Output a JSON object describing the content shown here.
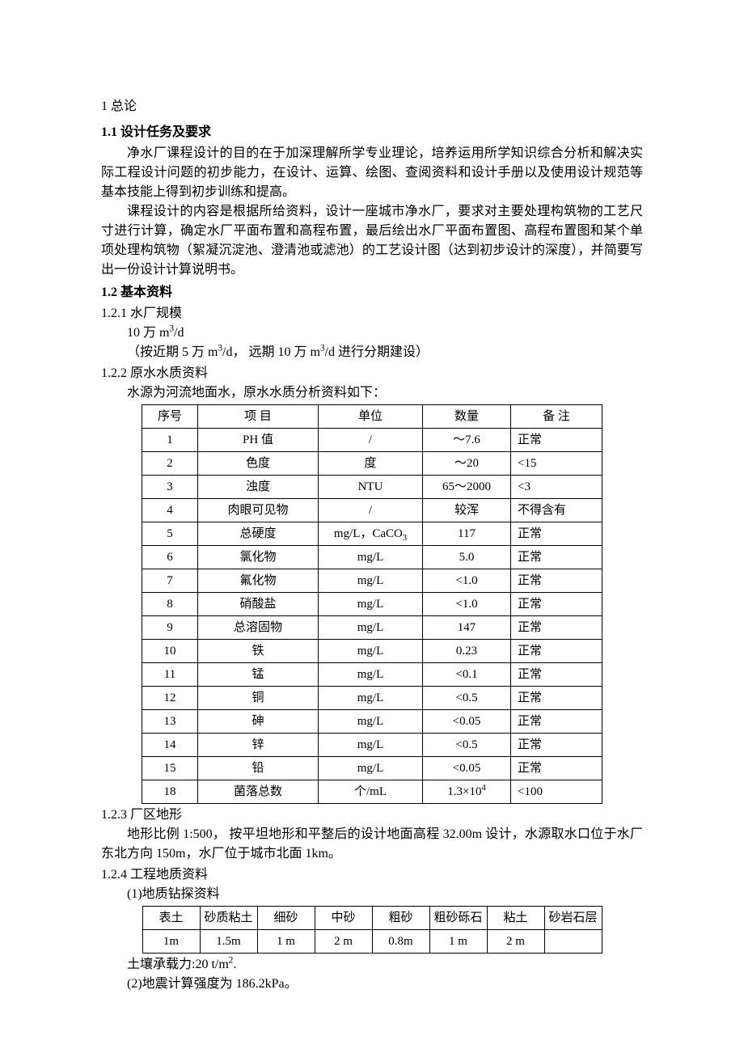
{
  "section1": {
    "num_title": "1 总论",
    "s11_title": "1.1 设计任务及要求",
    "para1": "净水厂课程设计的目的在于加深理解所学专业理论，培养运用所学知识综合分析和解决实际工程设计问题的初步能力，在设计、运算、绘图、查阅资料和设计手册以及使用设计规范等基本技能上得到初步训练和提高。",
    "para2": "课程设计的内容是根据所给资料，设计一座城市净水厂，要求对主要处理构筑物的工艺尺寸进行计算，确定水厂平面布置和高程布置，最后绘出水厂平面布置图、高程布置图和某个单项处理构筑物（絮凝沉淀池、澄清池或滤池）的工艺设计图（达到初步设计的深度），并简要写出一份设计计算说明书。",
    "s12_title": "1.2 基本资料",
    "s121_title": "1.2.1 水厂规模",
    "scale_line1_a": "10 万 m",
    "scale_line1_b": "/d",
    "scale_line2_a": "（按近期 5 万 m",
    "scale_line2_b": "/d，  远期 10 万 m",
    "scale_line2_c": "/d 进行分期建设）",
    "s122_title": "1.2.2 原水水质资料",
    "wq_intro": "水源为河流地面水，原水水质分析资料如下：",
    "wq_headers": [
      "序号",
      "项      目",
      "单位",
      "数量",
      "备    注"
    ],
    "wq_rows": [
      {
        "seq": "1",
        "item": "PH 值",
        "unit": "/",
        "qty": "～7.6",
        "note": "正常"
      },
      {
        "seq": "2",
        "item": "色度",
        "unit": "度",
        "qty": "～20",
        "note": "<15"
      },
      {
        "seq": "3",
        "item": "浊度",
        "unit": "NTU",
        "qty": "65～2000",
        "note": "<3"
      },
      {
        "seq": "4",
        "item": "肉眼可见物",
        "unit": "/",
        "qty": "较浑",
        "note": "不得含有"
      },
      {
        "seq": "5",
        "item": "总硬度",
        "unit_pre": "mg/L，CaCO",
        "unit_sub": "3",
        "qty": "117",
        "note": "正常"
      },
      {
        "seq": "6",
        "item": "氯化物",
        "unit": "mg/L",
        "qty": "5.0",
        "note": "正常"
      },
      {
        "seq": "7",
        "item": "氟化物",
        "unit": "mg/L",
        "qty": "<1.0",
        "note": "正常"
      },
      {
        "seq": "8",
        "item": "硝酸盐",
        "unit": "mg/L",
        "qty": "<1.0",
        "note": "正常"
      },
      {
        "seq": "9",
        "item": "总溶固物",
        "unit": "mg/L",
        "qty": "147",
        "note": "正常"
      },
      {
        "seq": "10",
        "item": "铁",
        "unit": "mg/L",
        "qty": "0.23",
        "note": "正常"
      },
      {
        "seq": "11",
        "item": "锰",
        "unit": "mg/L",
        "qty": "<0.1",
        "note": "正常"
      },
      {
        "seq": "12",
        "item": "铜",
        "unit": "mg/L",
        "qty": "<0.5",
        "note": "正常"
      },
      {
        "seq": "13",
        "item": "砷",
        "unit": "mg/L",
        "qty": "<0.05",
        "note": "正常"
      },
      {
        "seq": "14",
        "item": "锌",
        "unit": "mg/L",
        "qty": "<0.5",
        "note": "正常"
      },
      {
        "seq": "15",
        "item": "铅",
        "unit": "mg/L",
        "qty": "<0.05",
        "note": "正常"
      },
      {
        "seq": "18",
        "item": "菌落总数",
        "unit": "个/mL",
        "qty_pre": "1.3×10",
        "qty_sup": "4",
        "note": "<100"
      }
    ],
    "s123_title": "1.2.3 厂区地形",
    "terrain_para": "地形比例 1:500，  按平坦地形和平整后的设计地面高程 32.00m 设计，水源取水口位于水厂东北方向 150m，水厂位于城市北面 1km。",
    "s124_title": "1.2.4 工程地质资料",
    "geo_sub1": "(1)地质钻探资料",
    "geo_headers": [
      "表土",
      "砂质粘土",
      "细砂",
      "中砂",
      "粗砂",
      "粗砂砾石",
      "粘土",
      "砂岩石层"
    ],
    "geo_values": [
      "1m",
      "1.5m",
      "1 m",
      "2 m",
      "0.8m",
      "1 m",
      "2 m",
      ""
    ],
    "soil_bearing_a": "土壤承载力:20  t/m",
    "soil_bearing_b": ".",
    "geo_sub2": "(2)地震计算强度为 186.2kPa。"
  }
}
